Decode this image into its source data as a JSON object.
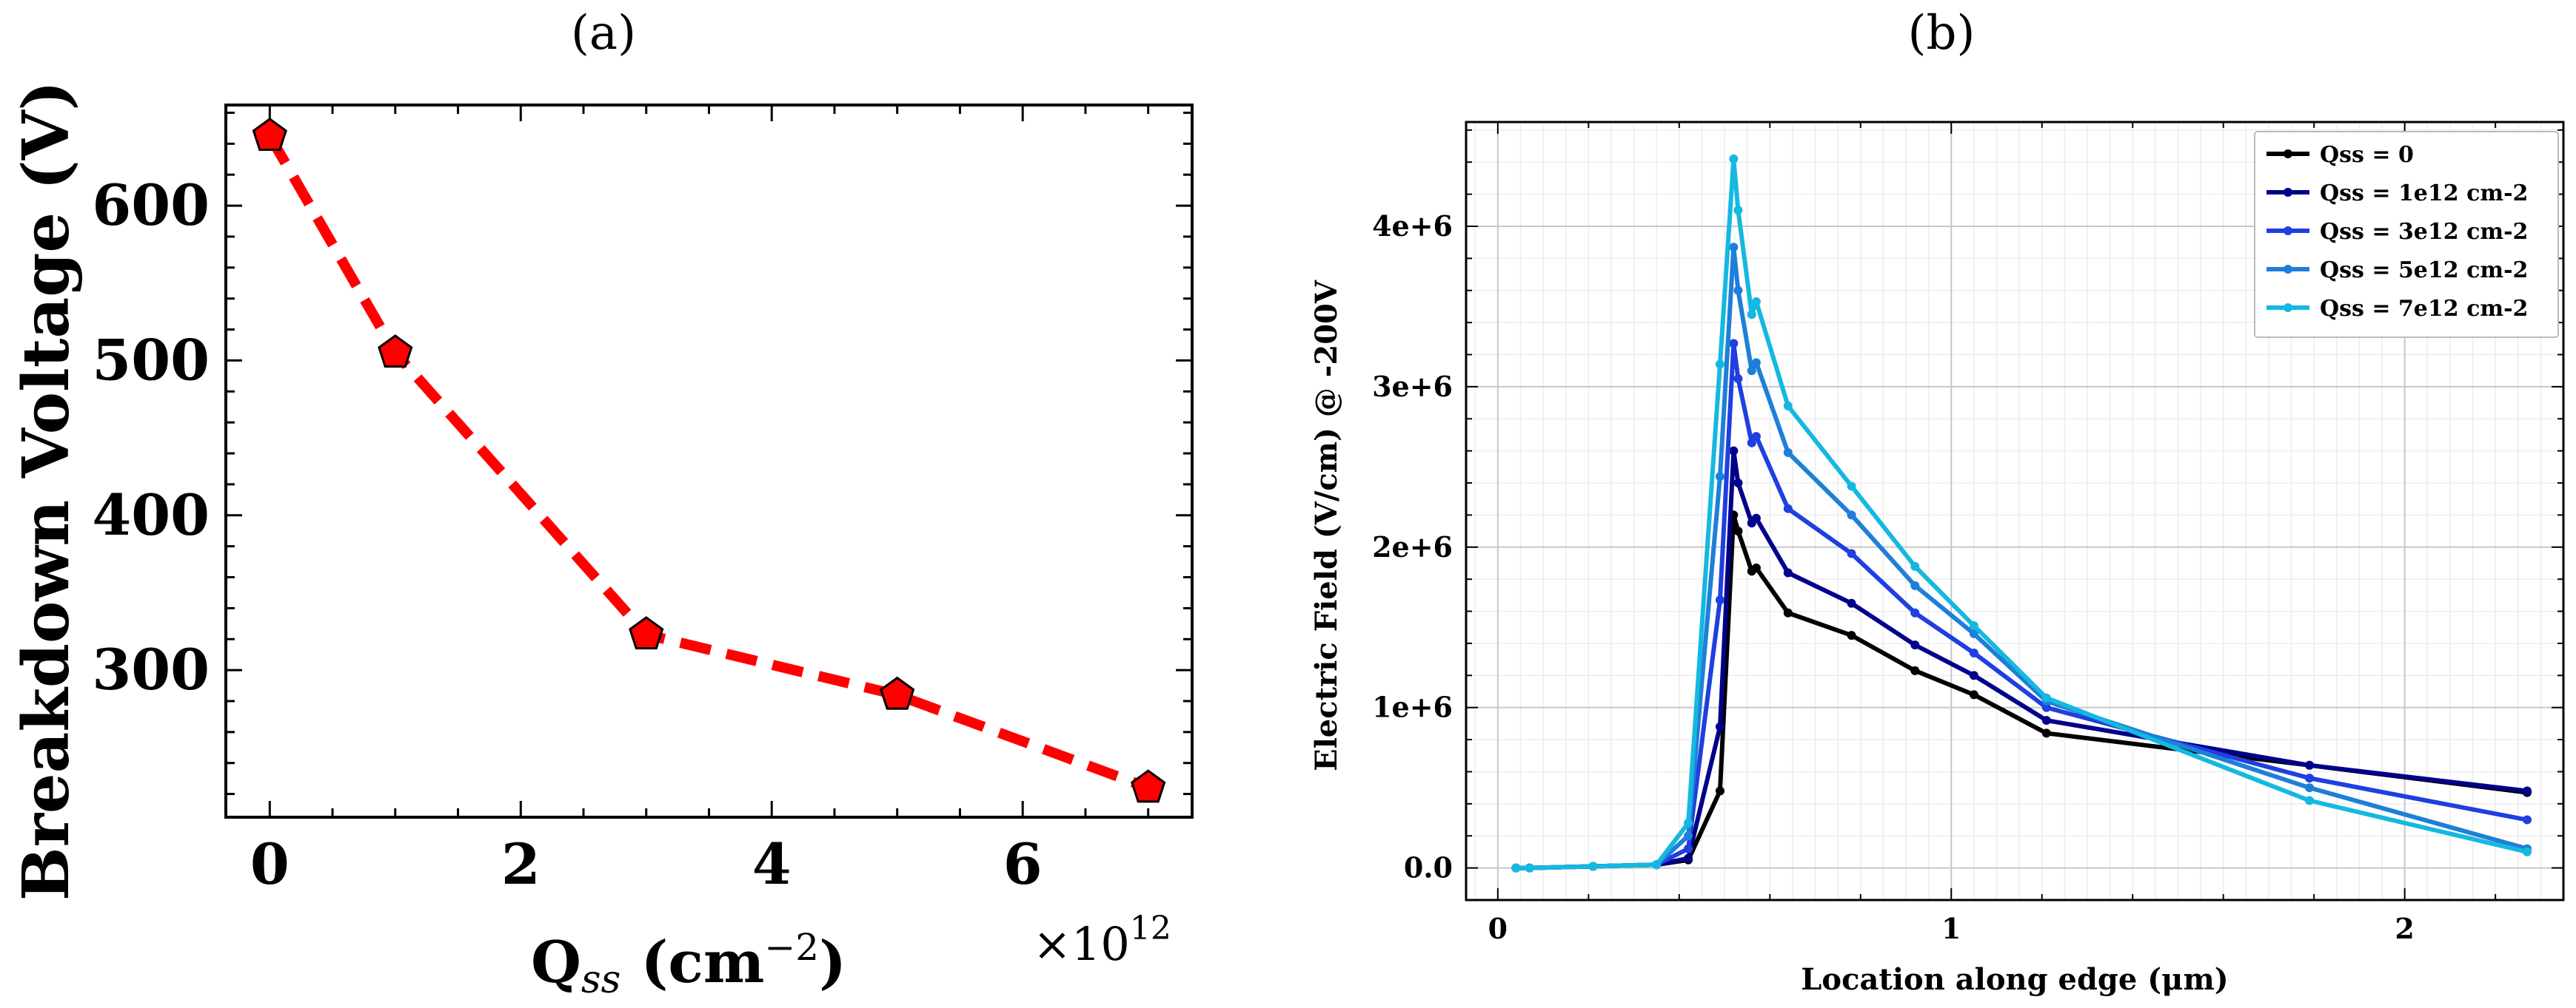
{
  "chart_data": [
    {
      "panel": "(a)",
      "type": "line",
      "title": "(a)",
      "x": [
        0,
        1,
        3,
        5,
        7
      ],
      "values": [
        645,
        505,
        323,
        284,
        224
      ],
      "xlabel_main": "Q",
      "xlabel_sub": "ss",
      "xlabel_unit_open": " (cm",
      "xlabel_unit_sup": "−2",
      "xlabel_unit_close": ")",
      "x_multiplier": "×10",
      "x_multiplier_exp": "12",
      "ylabel": "Breakdown Voltage (V)",
      "xlim": [
        -0.35,
        7.35
      ],
      "ylim": [
        205,
        665
      ],
      "xticks": [
        0,
        2,
        4,
        6
      ],
      "xtick_labels": [
        "0",
        "2",
        "4",
        "6"
      ],
      "yticks": [
        300,
        400,
        500,
        600
      ],
      "ytick_labels": [
        "300",
        "400",
        "500",
        "600"
      ],
      "line_color": "#ff0000",
      "marker_color": "#ff0000",
      "marker_edge": "#000000",
      "line_style": "dashed",
      "marker": "pentagon"
    },
    {
      "panel": "(b)",
      "type": "line",
      "title": "(b)",
      "xlabel": "Location along edge (μm)",
      "ylabel": "Electric Field (V/cm) @ -200V",
      "xlim": [
        -0.07,
        2.35
      ],
      "ylim": [
        -200000,
        4650000
      ],
      "xticks": [
        0,
        1,
        2
      ],
      "xtick_labels": [
        "0",
        "1",
        "2"
      ],
      "yticks": [
        0,
        1000000,
        2000000,
        3000000,
        4000000
      ],
      "ytick_labels": [
        "0.0",
        "1e+6",
        "2e+6",
        "3e+6",
        "4e+6"
      ],
      "grid": true,
      "legend_position": "top-right",
      "x": [
        0.04,
        0.07,
        0.21,
        0.35,
        0.42,
        0.49,
        0.52,
        0.53,
        0.56,
        0.57,
        0.64,
        0.78,
        0.92,
        1.05,
        1.21,
        1.79,
        2.27
      ],
      "series": [
        {
          "name": "Qss = 0",
          "color": "#000000",
          "values": [
            0,
            0,
            10000,
            20000,
            50000,
            480000,
            2200000,
            2100000,
            1850000,
            1870000,
            1590000,
            1450000,
            1230000,
            1080000,
            840000,
            640000,
            470000
          ]
        },
        {
          "name": "Qss = 1e12 cm-2",
          "color": "#00008b",
          "values": [
            0,
            0,
            10000,
            20000,
            60000,
            880000,
            2600000,
            2400000,
            2150000,
            2180000,
            1840000,
            1650000,
            1390000,
            1200000,
            920000,
            640000,
            480000
          ]
        },
        {
          "name": "Qss = 3e12 cm-2",
          "color": "#1f3fe0",
          "values": [
            0,
            0,
            10000,
            20000,
            120000,
            1670000,
            3270000,
            3050000,
            2650000,
            2690000,
            2240000,
            1960000,
            1590000,
            1340000,
            1000000,
            560000,
            300000
          ]
        },
        {
          "name": "Qss = 5e12 cm-2",
          "color": "#1e7fd8",
          "values": [
            0,
            0,
            10000,
            20000,
            200000,
            2440000,
            3870000,
            3600000,
            3100000,
            3150000,
            2590000,
            2200000,
            1760000,
            1460000,
            1040000,
            500000,
            120000
          ]
        },
        {
          "name": "Qss = 7e12 cm-2",
          "color": "#14b8e0",
          "values": [
            0,
            0,
            10000,
            20000,
            280000,
            3140000,
            4420000,
            4100000,
            3450000,
            3530000,
            2880000,
            2380000,
            1880000,
            1510000,
            1060000,
            420000,
            100000
          ]
        }
      ]
    }
  ]
}
